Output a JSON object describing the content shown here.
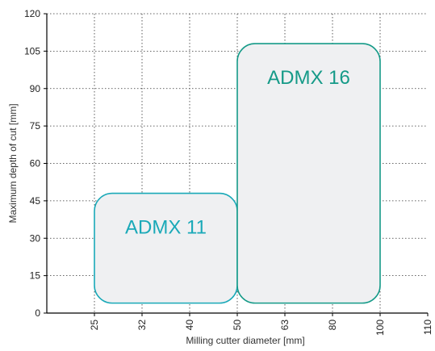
{
  "chart_data": {
    "type": "area",
    "xlabel": "Milling cutter diameter [mm]",
    "ylabel": "Maximum depth of cut [mm]",
    "x_categories": [
      "25",
      "32",
      "40",
      "50",
      "63",
      "80",
      "100",
      "110"
    ],
    "ylim": [
      0,
      120
    ],
    "y_ticks": [
      "0",
      "15",
      "30",
      "45",
      "60",
      "75",
      "90",
      "105",
      "120"
    ],
    "grid": true,
    "regions": [
      {
        "name": "ADMX 11",
        "x_from": "25",
        "x_to": "50",
        "y_from": 4,
        "y_to": 48,
        "color": "#1aa9b8"
      },
      {
        "name": "ADMX 16",
        "x_from": "50",
        "x_to": "100",
        "y_from": 4,
        "y_to": 108,
        "color": "#159a88"
      }
    ]
  },
  "colors": {
    "region_fill": "#eff0f2",
    "grid": "#333333",
    "axis": "#000000"
  }
}
